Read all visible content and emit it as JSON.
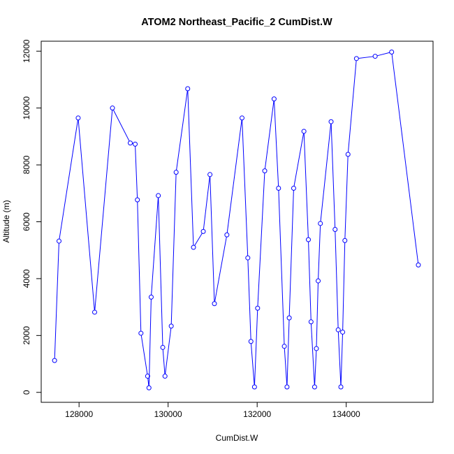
{
  "chart_data": {
    "type": "line",
    "title": "ATOM2 Northeast_Pacific_2 CumDist.W",
    "xlabel": "CumDist.W",
    "ylabel": "Altitude (m)",
    "xlim": [
      127150,
      135950
    ],
    "ylim": [
      -350,
      12350
    ],
    "x_ticks": [
      128000,
      130000,
      132000,
      134000
    ],
    "y_ticks": [
      0,
      2000,
      4000,
      6000,
      8000,
      10000,
      12000
    ],
    "grid": false,
    "legend": "none",
    "markers": "open-circle",
    "color": "#0000ff",
    "series": [
      {
        "x": [
          127450,
          127550,
          127980,
          128350,
          128750,
          129150,
          129260,
          129310,
          129390,
          129540,
          129570,
          129620,
          129780,
          129880,
          129930,
          130070,
          130180,
          130440,
          130570,
          130790,
          130940,
          131040,
          131320,
          131660,
          131790,
          131860,
          131940,
          132010,
          132170,
          132380,
          132480,
          132610,
          132670,
          132720,
          132820,
          133050,
          133150,
          133210,
          133290,
          133330,
          133370,
          133420,
          133660,
          133750,
          133820,
          133880,
          133920,
          133970,
          134040,
          134230,
          134650,
          135020,
          135620
        ],
        "y": [
          1120,
          5320,
          9650,
          2820,
          10000,
          8770,
          8730,
          6770,
          2080,
          570,
          160,
          3350,
          6920,
          1580,
          570,
          2330,
          7740,
          10680,
          5100,
          5660,
          7660,
          3120,
          5540,
          9650,
          4730,
          1790,
          190,
          2960,
          7790,
          10320,
          7180,
          1620,
          190,
          2620,
          7180,
          9180,
          5370,
          2480,
          190,
          1540,
          3920,
          5940,
          9520,
          5730,
          2200,
          190,
          2120,
          5340,
          8370,
          11740,
          11820,
          11970,
          4480
        ]
      }
    ]
  }
}
